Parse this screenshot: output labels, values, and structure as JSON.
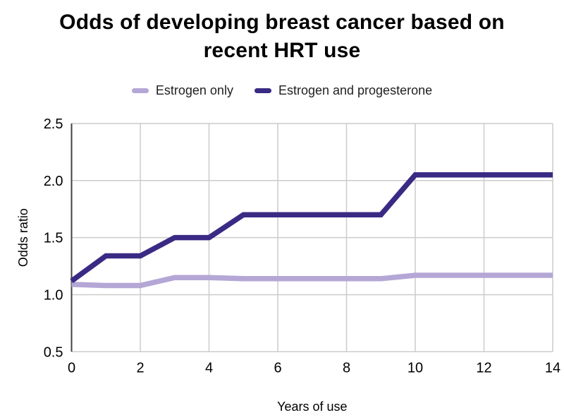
{
  "page": {
    "background": "#ffffff"
  },
  "chart_data": {
    "type": "line",
    "title": "Odds of developing breast cancer based on recent HRT use",
    "xlabel": "Years of use",
    "ylabel": "Odds ratio",
    "x": [
      0,
      1,
      2,
      3,
      4,
      5,
      6,
      7,
      8,
      9,
      10,
      11,
      12,
      13,
      14
    ],
    "series": [
      {
        "name": "Estrogen only",
        "color": "#b4a7d6",
        "values": [
          1.09,
          1.08,
          1.08,
          1.15,
          1.15,
          1.14,
          1.14,
          1.14,
          1.14,
          1.14,
          1.17,
          1.17,
          1.17,
          1.17,
          1.17
        ]
      },
      {
        "name": "Estrogen and progesterone",
        "color": "#3a2a84",
        "values": [
          1.12,
          1.34,
          1.34,
          1.5,
          1.5,
          1.7,
          1.7,
          1.7,
          1.7,
          1.7,
          2.05,
          2.05,
          2.05,
          2.05,
          2.05
        ]
      }
    ],
    "xlim": [
      0,
      14
    ],
    "ylim": [
      0.5,
      2.5
    ],
    "x_ticks": [
      0,
      2,
      4,
      6,
      8,
      10,
      12,
      14
    ],
    "x_tick_labels": [
      "0",
      "2",
      "4",
      "6",
      "8",
      "10",
      "12",
      "14"
    ],
    "y_ticks": [
      0.5,
      1.0,
      1.5,
      2.0,
      2.5
    ],
    "y_tick_labels": [
      "0.5",
      "1.0",
      "1.5",
      "2.0",
      "2.5"
    ],
    "grid": true,
    "legend_position": "top",
    "line_width": 7.5,
    "colors": {
      "grid": "#cccccc",
      "axis_line": "#424242",
      "tick_text": "#000000",
      "axis_title_text": "#000000"
    }
  }
}
